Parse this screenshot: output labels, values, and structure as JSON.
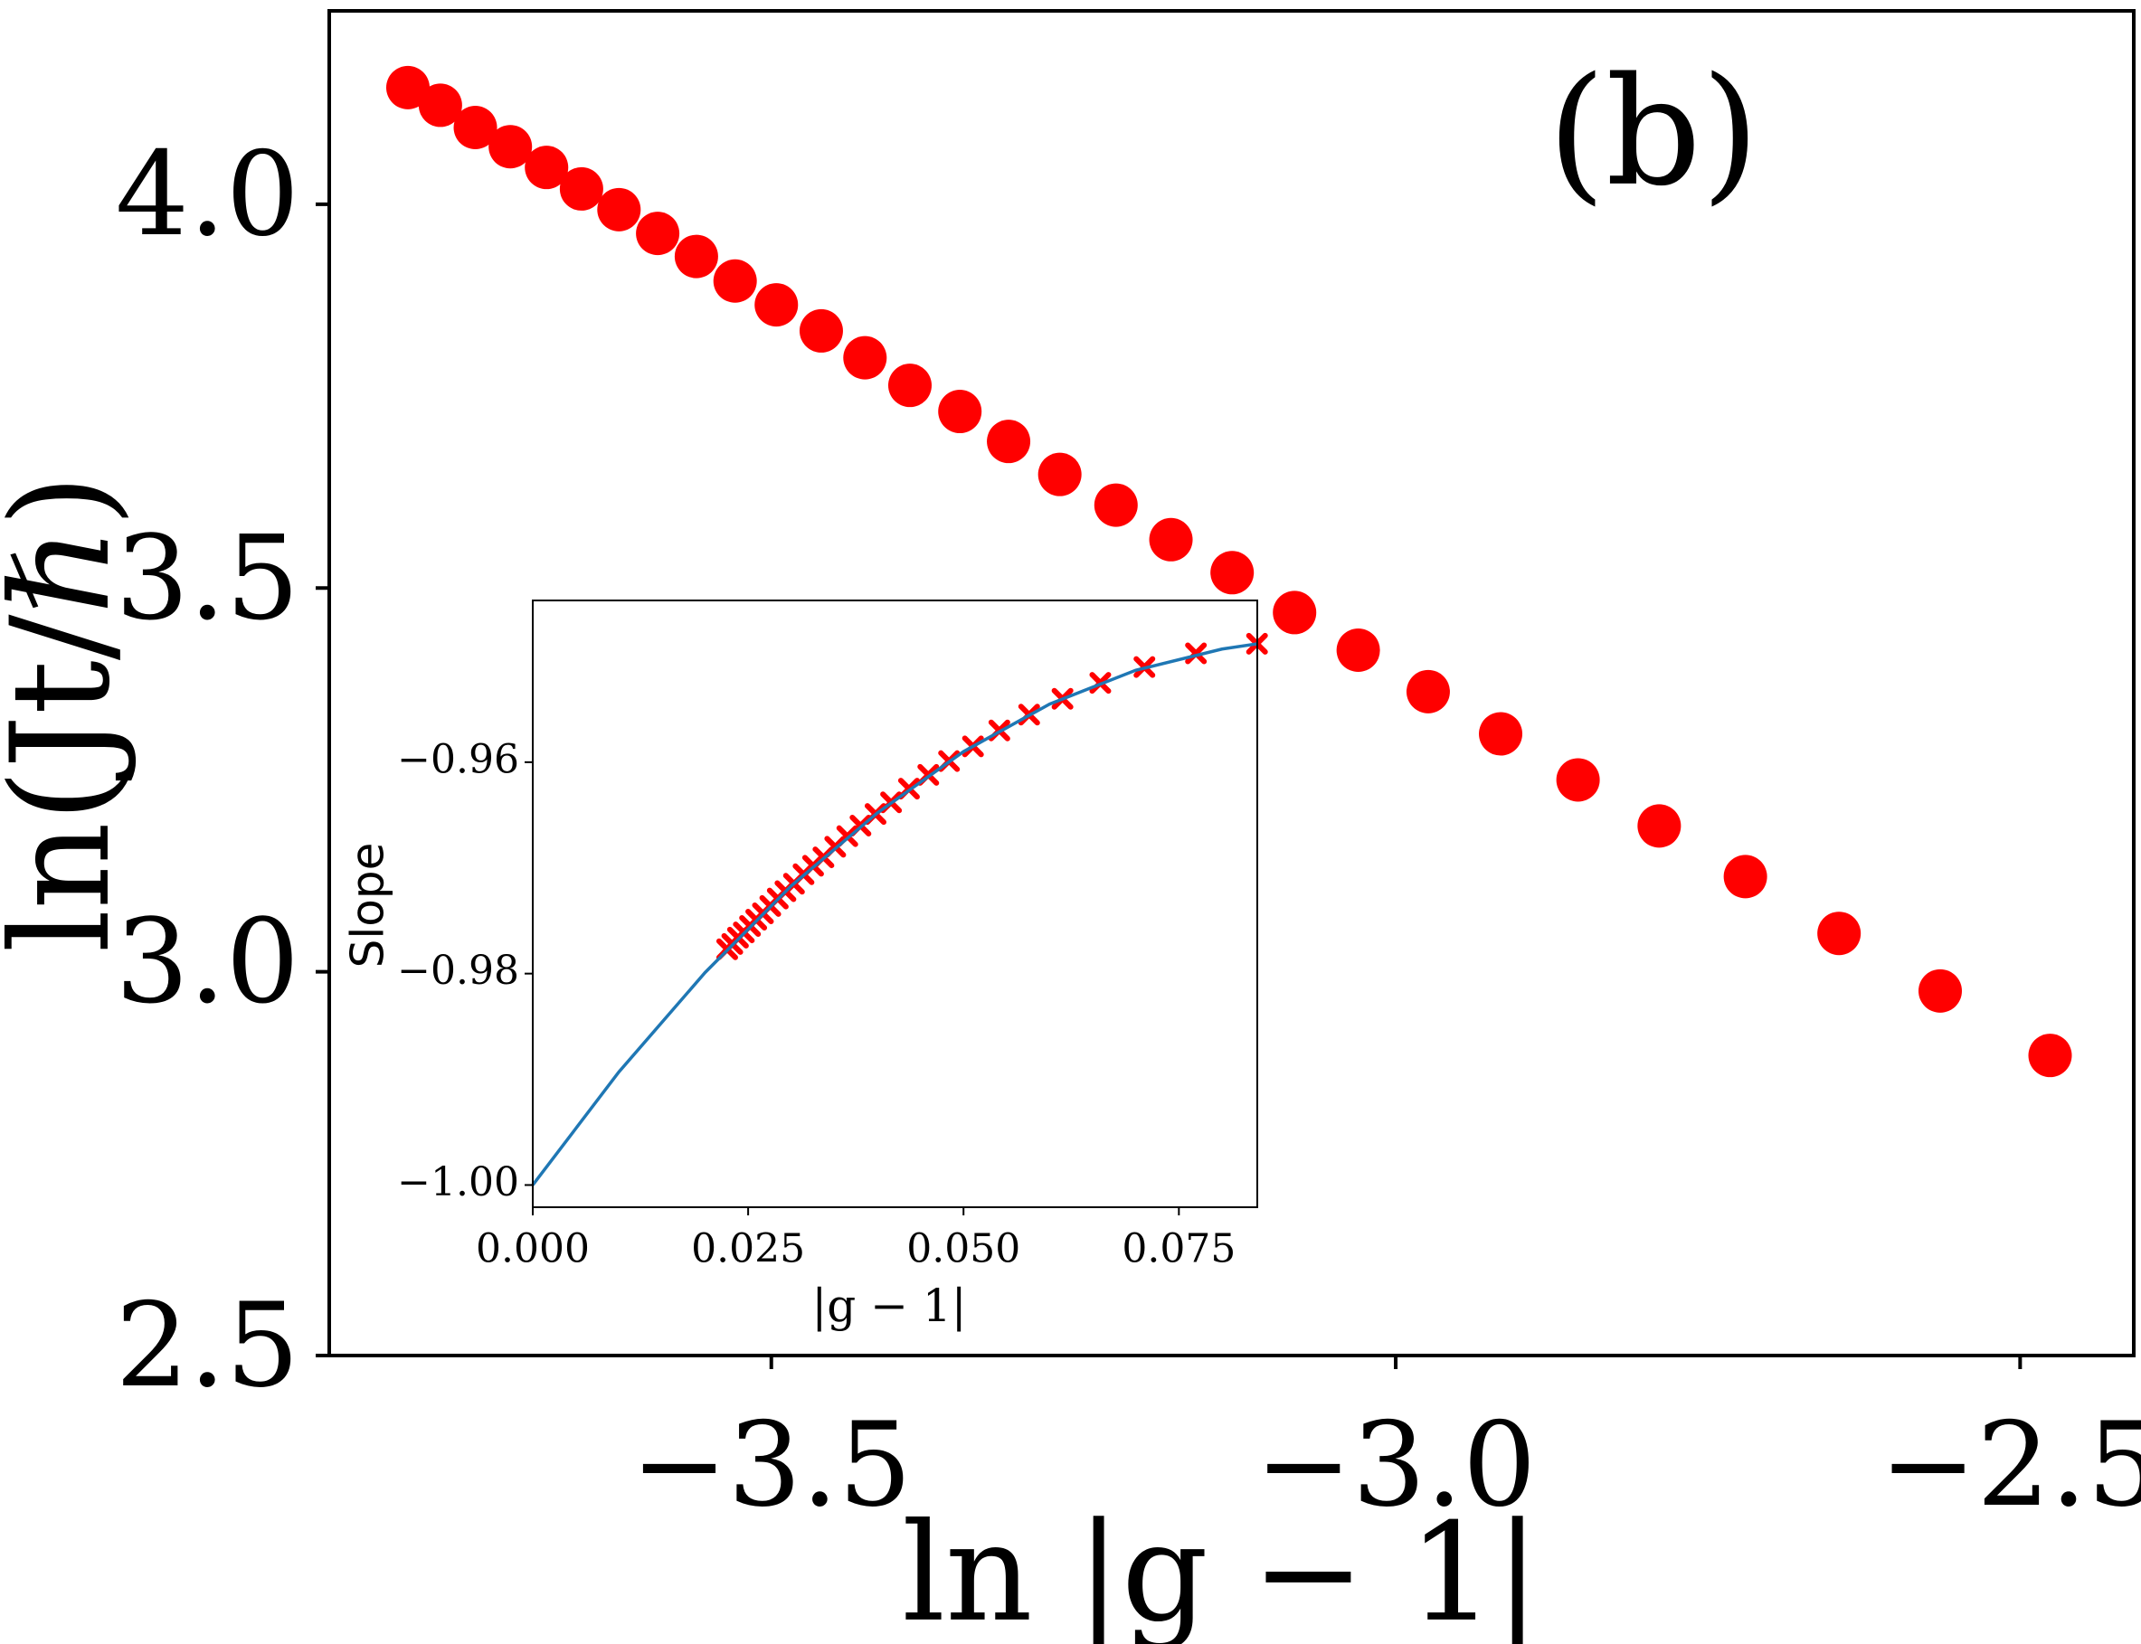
{
  "chart_data": [
    {
      "type": "scatter",
      "annotation": "(b)",
      "x_label": "ln |g − 1|",
      "y_label": "ln(Jt/ℏ)",
      "color": "#ff0000",
      "x": [
        -3.791,
        -3.765,
        -3.737,
        -3.709,
        -3.68,
        -3.652,
        -3.622,
        -3.591,
        -3.56,
        -3.529,
        -3.496,
        -3.46,
        -3.425,
        -3.389,
        -3.349,
        -3.31,
        -3.269,
        -3.224,
        -3.18,
        -3.131,
        -3.081,
        -3.03,
        -2.974,
        -2.916,
        -2.854,
        -2.789,
        -2.72,
        -2.645,
        -2.564,
        -2.476
      ],
      "values": [
        4.152,
        4.129,
        4.1,
        4.075,
        4.048,
        4.02,
        3.993,
        3.962,
        3.932,
        3.9,
        3.869,
        3.835,
        3.8,
        3.764,
        3.73,
        3.691,
        3.648,
        3.608,
        3.563,
        3.52,
        3.468,
        3.419,
        3.365,
        3.31,
        3.25,
        3.19,
        3.124,
        3.05,
        2.975,
        2.891
      ],
      "xlim": [
        -3.854,
        -2.409
      ],
      "ylim": [
        2.5,
        4.252
      ],
      "xticks": [
        {
          "value": -3.5,
          "label": "−3.5"
        },
        {
          "value": -3.0,
          "label": "−3.0"
        },
        {
          "value": -2.5,
          "label": "−2.5"
        }
      ],
      "yticks": [
        {
          "value": 2.5,
          "label": "2.5"
        },
        {
          "value": 3.0,
          "label": "3.0"
        },
        {
          "value": 3.5,
          "label": "3.5"
        },
        {
          "value": 4.0,
          "label": "4.0"
        }
      ],
      "grid": false
    },
    {
      "type": "scatter",
      "x_label": "|g − 1|",
      "y_label": "Slope",
      "series": [
        {
          "color": "#ff0000",
          "marker": "cross",
          "x": [
            0.02257,
            0.02316,
            0.02382,
            0.0245,
            0.02522,
            0.02594,
            0.02672,
            0.02757,
            0.02844,
            0.02933,
            0.03032,
            0.03143,
            0.03254,
            0.03374,
            0.03511,
            0.03651,
            0.03804,
            0.03979,
            0.04159,
            0.04367,
            0.04591,
            0.04832,
            0.0511,
            0.05416,
            0.05762,
            0.06149,
            0.06588,
            0.071,
            0.07698,
            0.08407
          ],
          "values": [
            -0.9777,
            -0.9772,
            -0.9766,
            -0.9761,
            -0.9755,
            -0.9749,
            -0.9743,
            -0.9736,
            -0.9729,
            -0.9722,
            -0.9715,
            -0.9706,
            -0.9698,
            -0.969,
            -0.968,
            -0.967,
            -0.966,
            -0.9649,
            -0.9638,
            -0.9625,
            -0.9612,
            -0.9599,
            -0.9585,
            -0.957,
            -0.9555,
            -0.954,
            -0.9525,
            -0.951,
            -0.9497,
            -0.9488
          ]
        },
        {
          "color": "#1f77b4",
          "marker": "line",
          "x": [
            0,
            0.01,
            0.02,
            0.03,
            0.04,
            0.05,
            0.06,
            0.07,
            0.08,
            0.0841
          ],
          "values": [
            -1.0,
            -0.9893,
            -0.9799,
            -0.9717,
            -0.9648,
            -0.959,
            -0.9545,
            -0.9513,
            -0.9493,
            -0.9488
          ]
        }
      ],
      "xlim": [
        0,
        0.0841
      ],
      "ylim": [
        -1.0021,
        -0.9447
      ],
      "xticks": [
        {
          "value": 0,
          "label": "0.000"
        },
        {
          "value": 0.025,
          "label": "0.025"
        },
        {
          "value": 0.05,
          "label": "0.050"
        },
        {
          "value": 0.075,
          "label": "0.075"
        }
      ],
      "yticks": [
        {
          "value": -1.0,
          "label": "−1.00"
        },
        {
          "value": -0.98,
          "label": "−0.98"
        },
        {
          "value": -0.96,
          "label": "−0.96"
        }
      ],
      "grid": false
    }
  ]
}
